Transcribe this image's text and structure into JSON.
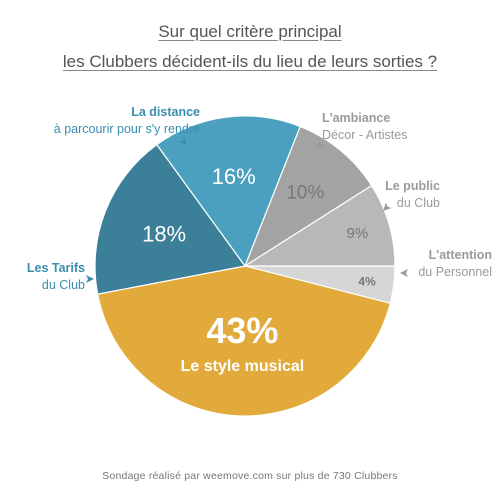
{
  "title": {
    "line1": "Sur quel critère principal",
    "line2": "les Clubbers décident-ils du lieu de leurs sorties ?"
  },
  "footer": "Sondage réalisé par weemove.com sur plus de 730 Clubbers",
  "colors": {
    "style": "#E1AA3A",
    "tarifs": "#3B7F98",
    "distance": "#4BA0BF",
    "ambiance": "#A3A3A3",
    "public": "#B8B8B8",
    "attention": "#D6D6D6",
    "blue_label": "#3A8EB0",
    "grey_label": "#9A9A9A"
  },
  "chart_data": {
    "type": "pie",
    "slices": [
      {
        "key": "attention",
        "value": 4,
        "label": "4%",
        "annotation": [
          "L'attention",
          "du Personnel"
        ]
      },
      {
        "key": "style",
        "value": 43,
        "label": "43%",
        "inner_label": "Le style musical"
      },
      {
        "key": "tarifs",
        "value": 18,
        "label": "18%",
        "annotation": [
          "Les Tarifs",
          "du Club"
        ]
      },
      {
        "key": "distance",
        "value": 16,
        "label": "16%",
        "annotation": [
          "La distance",
          "à parcourir pour s'y rendre"
        ]
      },
      {
        "key": "ambiance",
        "value": 10,
        "label": "10%",
        "annotation": [
          "L'ambiance",
          "Décor - Artistes"
        ]
      },
      {
        "key": "public",
        "value": 9,
        "label": "9%",
        "annotation": [
          "Le public",
          "du Club"
        ]
      }
    ]
  }
}
